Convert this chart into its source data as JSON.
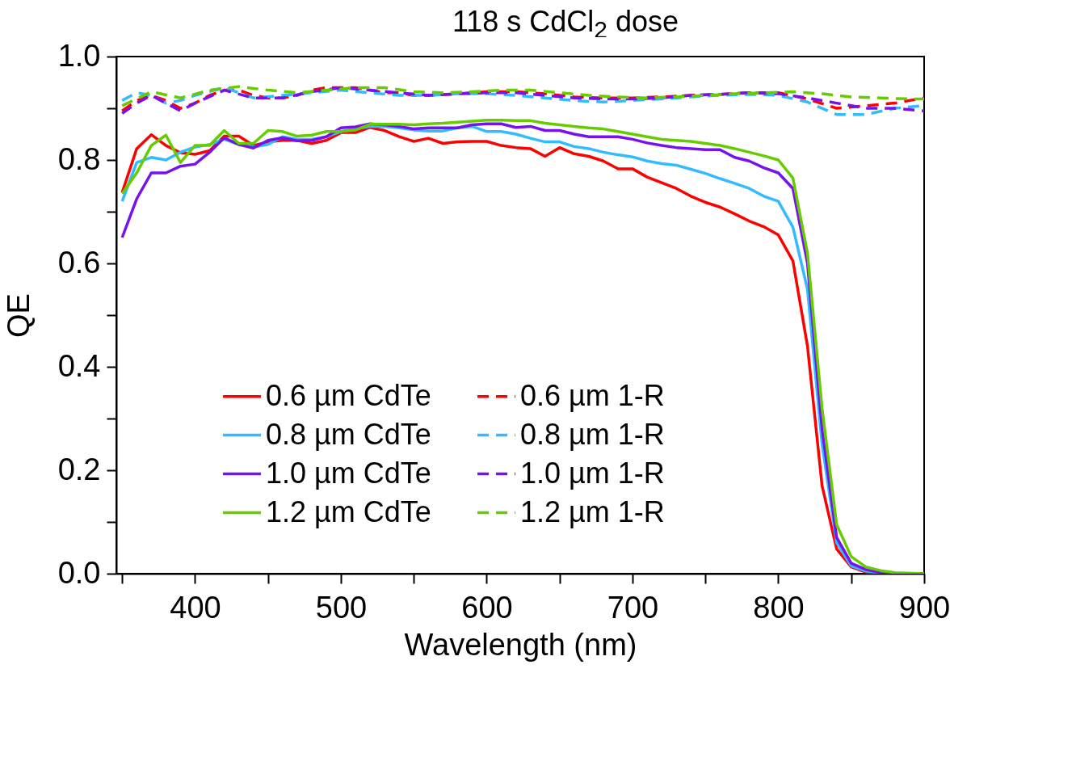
{
  "chart_data": {
    "type": "line",
    "title": "118 s CdCl$_{2}$ dose",
    "xlabel": "Wavelength (nm)",
    "ylabel": "QE",
    "xlim": [
      346,
      900
    ],
    "ylim": [
      0,
      1
    ],
    "xticks": [
      {
        "value": 350,
        "label": null
      },
      400,
      {
        "value": 450,
        "label": null
      },
      500,
      {
        "value": 550,
        "label": null
      },
      600,
      {
        "value": 650,
        "label": null
      },
      700,
      {
        "value": 750,
        "label": null
      },
      800,
      {
        "value": 850,
        "label": null
      },
      900
    ],
    "yticks": [
      {
        "value": 0,
        "label": "0.0"
      },
      {
        "value": 0.1,
        "label": null
      },
      0.2,
      {
        "value": 0.3,
        "label": null
      },
      0.4,
      {
        "value": 0.5,
        "label": null
      },
      0.6,
      {
        "value": 0.7,
        "label": null
      },
      0.8,
      {
        "value": 0.9,
        "label": null
      },
      {
        "value": 1,
        "label": "1.0"
      }
    ],
    "grid": false,
    "legend": "bottom left",
    "marker": "none",
    "series": [
      {
        "name": "0.6 µm CdTe",
        "color": "#ff0000",
        "line_style": "solid",
        "x": [
          350,
          360,
          370,
          380,
          390,
          400,
          410,
          420,
          430,
          440,
          450,
          460,
          470,
          480,
          490,
          500,
          510,
          520,
          530,
          540,
          550,
          560,
          570,
          580,
          590,
          600,
          610,
          620,
          630,
          640,
          650,
          660,
          670,
          680,
          690,
          700,
          710,
          720,
          730,
          740,
          750,
          760,
          770,
          780,
          790,
          800,
          810,
          820,
          830,
          840,
          850,
          860,
          870
        ],
        "values": [
          0.737,
          0.822,
          0.849,
          0.828,
          0.814,
          0.811,
          0.818,
          0.846,
          0.846,
          0.828,
          0.835,
          0.838,
          0.838,
          0.832,
          0.838,
          0.853,
          0.853,
          0.863,
          0.857,
          0.845,
          0.836,
          0.842,
          0.832,
          0.835,
          0.836,
          0.836,
          0.828,
          0.824,
          0.822,
          0.807,
          0.824,
          0.812,
          0.807,
          0.798,
          0.783,
          0.783,
          0.767,
          0.756,
          0.745,
          0.73,
          0.718,
          0.709,
          0.696,
          0.682,
          0.671,
          0.655,
          0.605,
          0.44,
          0.17,
          0.048,
          0.013,
          0.003,
          0
        ]
      },
      {
        "name": "0.8 µm CdTe",
        "color": "#33bbff",
        "line_style": "solid",
        "x": [
          350,
          360,
          370,
          380,
          390,
          400,
          410,
          420,
          430,
          440,
          450,
          460,
          470,
          480,
          490,
          500,
          510,
          520,
          530,
          540,
          550,
          560,
          570,
          580,
          590,
          600,
          610,
          620,
          630,
          640,
          650,
          660,
          670,
          680,
          690,
          700,
          710,
          720,
          730,
          740,
          750,
          760,
          770,
          780,
          790,
          800,
          810,
          820,
          830,
          840,
          850,
          860,
          870,
          880,
          900
        ],
        "values": [
          0.72,
          0.795,
          0.805,
          0.8,
          0.815,
          0.825,
          0.83,
          0.84,
          0.83,
          0.825,
          0.83,
          0.845,
          0.84,
          0.84,
          0.845,
          0.855,
          0.86,
          0.865,
          0.865,
          0.862,
          0.858,
          0.856,
          0.856,
          0.862,
          0.865,
          0.855,
          0.855,
          0.85,
          0.842,
          0.835,
          0.835,
          0.826,
          0.822,
          0.815,
          0.81,
          0.806,
          0.798,
          0.793,
          0.79,
          0.782,
          0.774,
          0.764,
          0.755,
          0.745,
          0.73,
          0.72,
          0.67,
          0.55,
          0.25,
          0.06,
          0.015,
          0.005,
          0.002,
          0,
          0
        ]
      },
      {
        "name": "1.0 µm CdTe",
        "color": "#7711ee",
        "line_style": "solid",
        "x": [
          350,
          360,
          370,
          380,
          390,
          400,
          410,
          420,
          430,
          440,
          450,
          460,
          470,
          480,
          490,
          500,
          510,
          520,
          530,
          540,
          550,
          560,
          570,
          580,
          590,
          600,
          610,
          620,
          630,
          640,
          650,
          660,
          670,
          680,
          690,
          700,
          710,
          720,
          730,
          740,
          750,
          760,
          770,
          780,
          790,
          800,
          810,
          820,
          830,
          840,
          850,
          860,
          870,
          880,
          900
        ],
        "values": [
          0.65,
          0.725,
          0.775,
          0.775,
          0.788,
          0.792,
          0.815,
          0.843,
          0.83,
          0.823,
          0.838,
          0.843,
          0.837,
          0.838,
          0.845,
          0.862,
          0.864,
          0.87,
          0.868,
          0.865,
          0.86,
          0.862,
          0.862,
          0.862,
          0.868,
          0.87,
          0.87,
          0.863,
          0.865,
          0.857,
          0.857,
          0.85,
          0.845,
          0.845,
          0.845,
          0.84,
          0.833,
          0.828,
          0.824,
          0.822,
          0.82,
          0.82,
          0.805,
          0.798,
          0.785,
          0.775,
          0.745,
          0.6,
          0.28,
          0.07,
          0.02,
          0.008,
          0.002,
          0,
          0
        ]
      },
      {
        "name": "1.2 µm CdTe",
        "color": "#66cc00",
        "line_style": "solid",
        "x": [
          350,
          360,
          370,
          380,
          390,
          400,
          410,
          420,
          430,
          440,
          450,
          460,
          470,
          480,
          490,
          500,
          510,
          520,
          530,
          540,
          550,
          560,
          570,
          580,
          590,
          600,
          610,
          620,
          630,
          640,
          650,
          660,
          670,
          680,
          690,
          700,
          710,
          720,
          730,
          740,
          750,
          760,
          770,
          780,
          790,
          800,
          810,
          820,
          830,
          840,
          850,
          860,
          870,
          880,
          900
        ],
        "values": [
          0.735,
          0.775,
          0.828,
          0.848,
          0.795,
          0.828,
          0.828,
          0.857,
          0.832,
          0.832,
          0.857,
          0.855,
          0.846,
          0.848,
          0.855,
          0.855,
          0.858,
          0.869,
          0.869,
          0.869,
          0.868,
          0.87,
          0.871,
          0.873,
          0.875,
          0.877,
          0.877,
          0.876,
          0.876,
          0.871,
          0.868,
          0.865,
          0.862,
          0.86,
          0.855,
          0.85,
          0.845,
          0.84,
          0.838,
          0.836,
          0.832,
          0.828,
          0.822,
          0.815,
          0.808,
          0.8,
          0.765,
          0.62,
          0.32,
          0.095,
          0.033,
          0.013,
          0.006,
          0.002,
          0
        ]
      },
      {
        "name": "0.6 µm 1-R",
        "color": "#ff0000",
        "line_style": "dashed",
        "x": [
          350,
          360,
          370,
          380,
          390,
          400,
          410,
          420,
          430,
          440,
          450,
          460,
          470,
          480,
          490,
          500,
          510,
          520,
          530,
          540,
          550,
          560,
          580,
          600,
          620,
          640,
          660,
          680,
          700,
          720,
          740,
          760,
          780,
          800,
          820,
          840,
          860,
          880,
          900
        ],
        "values": [
          0.895,
          0.915,
          0.925,
          0.915,
          0.9,
          0.91,
          0.925,
          0.935,
          0.935,
          0.925,
          0.92,
          0.92,
          0.925,
          0.935,
          0.94,
          0.94,
          0.94,
          0.935,
          0.93,
          0.93,
          0.925,
          0.925,
          0.928,
          0.932,
          0.932,
          0.928,
          0.922,
          0.92,
          0.92,
          0.922,
          0.925,
          0.927,
          0.93,
          0.93,
          0.918,
          0.9,
          0.905,
          0.91,
          0.92
        ]
      },
      {
        "name": "0.8 µm 1-R",
        "color": "#33bbff",
        "line_style": "dashed",
        "x": [
          350,
          360,
          370,
          380,
          390,
          400,
          420,
          440,
          460,
          480,
          500,
          520,
          540,
          560,
          580,
          600,
          620,
          640,
          660,
          680,
          700,
          720,
          740,
          760,
          780,
          800,
          820,
          840,
          860,
          880,
          900
        ],
        "values": [
          0.915,
          0.93,
          0.925,
          0.91,
          0.915,
          0.925,
          0.94,
          0.92,
          0.925,
          0.93,
          0.935,
          0.93,
          0.925,
          0.925,
          0.928,
          0.928,
          0.925,
          0.92,
          0.915,
          0.912,
          0.915,
          0.918,
          0.922,
          0.925,
          0.927,
          0.925,
          0.912,
          0.888,
          0.888,
          0.9,
          0.905
        ]
      },
      {
        "name": "1.0 µm 1-R",
        "color": "#7711ee",
        "line_style": "dashed",
        "x": [
          350,
          360,
          370,
          380,
          390,
          400,
          420,
          440,
          460,
          480,
          500,
          520,
          540,
          560,
          580,
          600,
          620,
          640,
          660,
          680,
          700,
          720,
          740,
          760,
          780,
          800,
          820,
          840,
          860,
          880,
          900
        ],
        "values": [
          0.89,
          0.91,
          0.925,
          0.91,
          0.895,
          0.91,
          0.935,
          0.92,
          0.92,
          0.932,
          0.94,
          0.935,
          0.93,
          0.925,
          0.928,
          0.93,
          0.93,
          0.925,
          0.92,
          0.918,
          0.918,
          0.92,
          0.925,
          0.927,
          0.93,
          0.928,
          0.92,
          0.91,
          0.9,
          0.9,
          0.895
        ]
      },
      {
        "name": "1.2 µm 1-R",
        "color": "#66cc00",
        "line_style": "dashed",
        "x": [
          350,
          370,
          390,
          410,
          430,
          450,
          470,
          490,
          510,
          530,
          550,
          570,
          590,
          610,
          630,
          650,
          670,
          690,
          710,
          730,
          750,
          770,
          790,
          810,
          830,
          850,
          870,
          890,
          900
        ],
        "values": [
          0.905,
          0.932,
          0.92,
          0.935,
          0.942,
          0.935,
          0.93,
          0.935,
          0.94,
          0.94,
          0.932,
          0.93,
          0.932,
          0.935,
          0.935,
          0.93,
          0.925,
          0.922,
          0.92,
          0.922,
          0.925,
          0.928,
          0.93,
          0.932,
          0.928,
          0.922,
          0.92,
          0.918,
          0.918
        ]
      }
    ]
  }
}
